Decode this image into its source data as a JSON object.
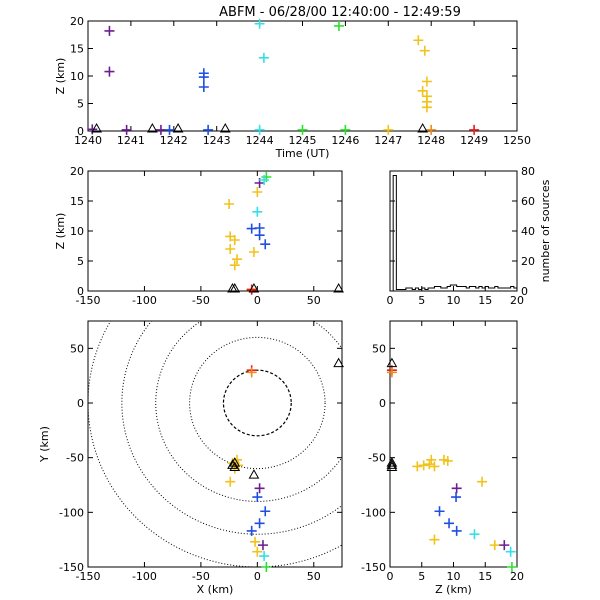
{
  "title": "ABFM - 06/28/00 12:40:00 - 12:49:59",
  "colors": {
    "purple": "#6a1f8f",
    "blue": "#1f4fe0",
    "cyan": "#33e0e8",
    "green": "#2ee02e",
    "yellow": "#f2c21c",
    "orange": "#f08a1c",
    "red": "#e81e1e",
    "station": "#000000"
  },
  "chart_data": [
    {
      "id": "time_height",
      "type": "scatter",
      "xlabel": "Time (UT)",
      "ylabel": "Z (km)",
      "xlim": [
        1240,
        1250
      ],
      "ylim": [
        0,
        20
      ],
      "xticks": [
        1240,
        1241,
        1242,
        1243,
        1244,
        1245,
        1246,
        1247,
        1248,
        1249,
        1250
      ],
      "yticks": [
        0,
        5,
        10,
        15,
        20
      ],
      "sources": [
        {
          "x": 1240.5,
          "y": 18.2,
          "color": "purple"
        },
        {
          "x": 1240.5,
          "y": 10.8,
          "color": "purple"
        },
        {
          "x": 1242.7,
          "y": 10.5,
          "color": "blue"
        },
        {
          "x": 1242.7,
          "y": 9.8,
          "color": "blue"
        },
        {
          "x": 1242.7,
          "y": 8.0,
          "color": "blue"
        },
        {
          "x": 1244.0,
          "y": 19.5,
          "color": "cyan"
        },
        {
          "x": 1244.1,
          "y": 13.3,
          "color": "cyan"
        },
        {
          "x": 1245.85,
          "y": 19.1,
          "color": "green"
        },
        {
          "x": 1247.7,
          "y": 16.5,
          "color": "yellow"
        },
        {
          "x": 1247.85,
          "y": 14.6,
          "color": "yellow"
        },
        {
          "x": 1247.9,
          "y": 9.0,
          "color": "yellow"
        },
        {
          "x": 1247.8,
          "y": 7.3,
          "color": "yellow"
        },
        {
          "x": 1247.9,
          "y": 6.3,
          "color": "yellow"
        },
        {
          "x": 1247.9,
          "y": 5.3,
          "color": "yellow"
        },
        {
          "x": 1247.9,
          "y": 4.3,
          "color": "yellow"
        },
        {
          "x": 1240.1,
          "y": 0.3,
          "color": "purple"
        },
        {
          "x": 1240.9,
          "y": 0.2,
          "color": "purple"
        },
        {
          "x": 1241.7,
          "y": 0.2,
          "color": "purple"
        },
        {
          "x": 1241.9,
          "y": 0.2,
          "color": "blue"
        },
        {
          "x": 1242.8,
          "y": 0.2,
          "color": "blue"
        },
        {
          "x": 1244.0,
          "y": 0.2,
          "color": "cyan"
        },
        {
          "x": 1245.0,
          "y": 0.2,
          "color": "green"
        },
        {
          "x": 1246.0,
          "y": 0.2,
          "color": "green"
        },
        {
          "x": 1247.0,
          "y": 0.2,
          "color": "yellow"
        },
        {
          "x": 1248.0,
          "y": 0.2,
          "color": "orange"
        },
        {
          "x": 1249.0,
          "y": 0.2,
          "color": "red"
        }
      ],
      "stations_x": [
        1240.2,
        1241.5,
        1242.1,
        1243.2,
        1247.8
      ]
    },
    {
      "id": "x_height",
      "type": "scatter",
      "xlabel": "",
      "ylabel": "Z (km)",
      "xlim": [
        -150,
        75
      ],
      "ylim": [
        0,
        20
      ],
      "xticks": [
        -150,
        -100,
        -50,
        0,
        50
      ],
      "yticks": [
        0,
        5,
        10,
        15,
        20
      ],
      "sources": [
        {
          "x": 2,
          "y": 18,
          "color": "purple"
        },
        {
          "x": 8,
          "y": 19,
          "color": "green"
        },
        {
          "x": 6,
          "y": 18.5,
          "color": "cyan"
        },
        {
          "x": 0,
          "y": 16.5,
          "color": "yellow"
        },
        {
          "x": -25,
          "y": 14.5,
          "color": "yellow"
        },
        {
          "x": 0,
          "y": 13.2,
          "color": "cyan"
        },
        {
          "x": 2,
          "y": 10.5,
          "color": "blue"
        },
        {
          "x": -5,
          "y": 10.4,
          "color": "blue"
        },
        {
          "x": 2,
          "y": 9.3,
          "color": "blue"
        },
        {
          "x": 7,
          "y": 7.8,
          "color": "blue"
        },
        {
          "x": -24,
          "y": 9.1,
          "color": "yellow"
        },
        {
          "x": -20,
          "y": 8.5,
          "color": "yellow"
        },
        {
          "x": -24,
          "y": 7.0,
          "color": "yellow"
        },
        {
          "x": -18,
          "y": 5.3,
          "color": "yellow"
        },
        {
          "x": -20,
          "y": 4.3,
          "color": "yellow"
        },
        {
          "x": -3,
          "y": 6.5,
          "color": "yellow"
        },
        {
          "x": -5,
          "y": 0.3,
          "color": "orange"
        },
        {
          "x": -5,
          "y": 0.2,
          "color": "red"
        }
      ],
      "stations_x": [
        -22,
        -20,
        -3,
        72
      ]
    },
    {
      "id": "histogram",
      "type": "bar",
      "ylabel": "number of sources",
      "xlim": [
        0,
        20
      ],
      "ylim": [
        0,
        80
      ],
      "xticks": [
        0,
        5,
        10,
        15,
        20
      ],
      "yticks": [
        0,
        20,
        40,
        60,
        80
      ],
      "bin_width": 0.5,
      "counts": [
        0,
        77,
        1,
        1,
        1,
        2,
        2,
        1,
        2,
        1,
        2,
        1,
        2,
        2,
        3,
        3,
        2,
        2,
        3,
        4,
        4,
        3,
        3,
        3,
        2,
        3,
        3,
        2,
        3,
        2,
        3,
        2,
        2,
        3,
        2,
        2,
        2,
        2,
        3,
        2
      ]
    },
    {
      "id": "plan_view",
      "type": "scatter",
      "xlabel": "X (km)",
      "ylabel": "Y (km)",
      "xlim": [
        -150,
        75
      ],
      "ylim": [
        -150,
        75
      ],
      "xticks": [
        -150,
        -100,
        -50,
        0,
        50
      ],
      "yticks": [
        -150,
        -100,
        -50,
        0,
        50
      ],
      "range_rings_km": [
        30,
        60,
        90,
        120,
        150
      ],
      "range_ring_center": [
        0,
        0
      ],
      "sources": [
        {
          "x": -5,
          "y": 30,
          "color": "red"
        },
        {
          "x": -5,
          "y": 28,
          "color": "orange"
        },
        {
          "x": -18,
          "y": -52,
          "color": "yellow"
        },
        {
          "x": -22,
          "y": -55,
          "color": "yellow"
        },
        {
          "x": -17,
          "y": -57,
          "color": "yellow"
        },
        {
          "x": -20,
          "y": -60,
          "color": "yellow"
        },
        {
          "x": -20,
          "y": -55,
          "color": "yellow"
        },
        {
          "x": -24,
          "y": -72,
          "color": "yellow"
        },
        {
          "x": 2,
          "y": -78,
          "color": "purple"
        },
        {
          "x": 0,
          "y": -86,
          "color": "blue"
        },
        {
          "x": 7,
          "y": -99,
          "color": "blue"
        },
        {
          "x": 2,
          "y": -110,
          "color": "blue"
        },
        {
          "x": -5,
          "y": -117,
          "color": "blue"
        },
        {
          "x": -2,
          "y": -127,
          "color": "yellow"
        },
        {
          "x": 0,
          "y": -136,
          "color": "yellow"
        },
        {
          "x": 5,
          "y": -130,
          "color": "purple"
        },
        {
          "x": 6,
          "y": -140,
          "color": "cyan"
        },
        {
          "x": 8,
          "y": -150,
          "color": "green"
        }
      ],
      "stations": [
        [
          72,
          36
        ],
        [
          -20,
          -55
        ],
        [
          -22,
          -57
        ],
        [
          -20,
          -59
        ],
        [
          -3,
          -66
        ]
      ]
    },
    {
      "id": "height_y",
      "type": "scatter",
      "xlabel": "Z (km)",
      "ylabel": "",
      "xlim": [
        0,
        20
      ],
      "ylim": [
        -150,
        75
      ],
      "xticks": [
        0,
        5,
        10,
        15,
        20
      ],
      "yticks": [
        -150,
        -100,
        -50,
        0,
        50
      ],
      "sources": [
        {
          "x": 0.3,
          "y": 30,
          "color": "red"
        },
        {
          "x": 0.3,
          "y": 28,
          "color": "orange"
        },
        {
          "x": 4.3,
          "y": -58,
          "color": "yellow"
        },
        {
          "x": 5.3,
          "y": -57,
          "color": "yellow"
        },
        {
          "x": 6.2,
          "y": -56,
          "color": "yellow"
        },
        {
          "x": 6.5,
          "y": -52,
          "color": "yellow"
        },
        {
          "x": 7.0,
          "y": -58,
          "color": "yellow"
        },
        {
          "x": 8.5,
          "y": -52,
          "color": "yellow"
        },
        {
          "x": 9.1,
          "y": -53,
          "color": "yellow"
        },
        {
          "x": 14.5,
          "y": -72,
          "color": "yellow"
        },
        {
          "x": 10.5,
          "y": -78,
          "color": "purple"
        },
        {
          "x": 10.4,
          "y": -86,
          "color": "blue"
        },
        {
          "x": 7.8,
          "y": -99,
          "color": "blue"
        },
        {
          "x": 9.3,
          "y": -110,
          "color": "blue"
        },
        {
          "x": 10.5,
          "y": -117,
          "color": "blue"
        },
        {
          "x": 7.0,
          "y": -125,
          "color": "yellow"
        },
        {
          "x": 13.3,
          "y": -120,
          "color": "cyan"
        },
        {
          "x": 16.5,
          "y": -130,
          "color": "yellow"
        },
        {
          "x": 18.0,
          "y": -130,
          "color": "purple"
        },
        {
          "x": 19.0,
          "y": -136,
          "color": "cyan"
        },
        {
          "x": 19.2,
          "y": -150,
          "color": "green"
        }
      ],
      "stations_y": [
        36,
        -55,
        -57,
        -59
      ]
    }
  ]
}
